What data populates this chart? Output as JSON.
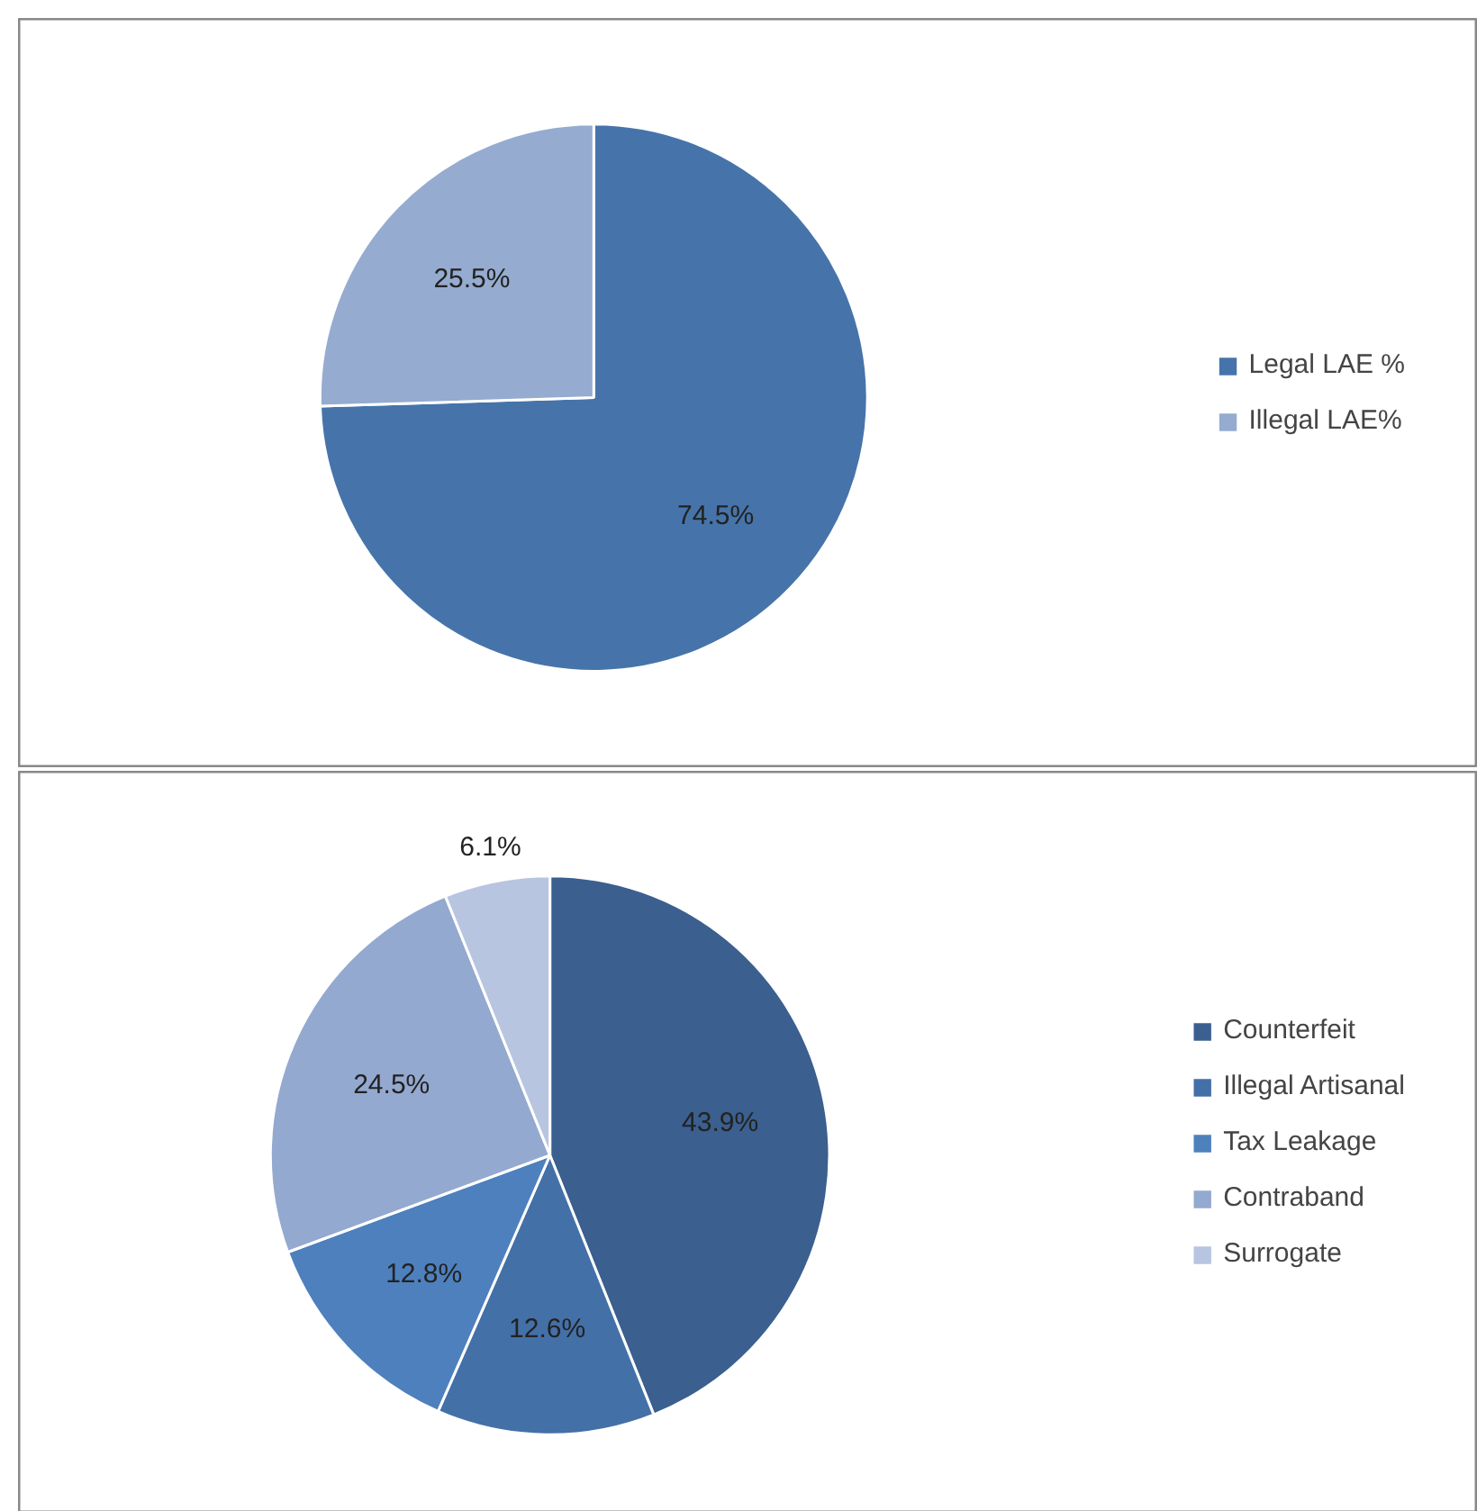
{
  "chart_data": [
    {
      "type": "pie",
      "categories": [
        "Legal LAE %",
        "Illegal LAE%"
      ],
      "values": [
        74.5,
        25.5
      ],
      "colors": [
        "#4674aa",
        "#95abd0"
      ],
      "value_labels": [
        "74.5%",
        "25.5%"
      ],
      "legend": "right"
    },
    {
      "type": "pie",
      "categories": [
        "Counterfeit",
        "Illegal Artisanal",
        "Tax Leakage",
        "Contraband",
        "Surrogate"
      ],
      "values": [
        43.9,
        12.6,
        12.8,
        24.5,
        6.1
      ],
      "colors": [
        "#3b5f8e",
        "#4470a8",
        "#4e80bd",
        "#94a9cf",
        "#b8c5e0"
      ],
      "value_labels": [
        "43.9%",
        "12.6%",
        "12.8%",
        "24.5%",
        "6.1%"
      ],
      "legend": "right"
    }
  ]
}
